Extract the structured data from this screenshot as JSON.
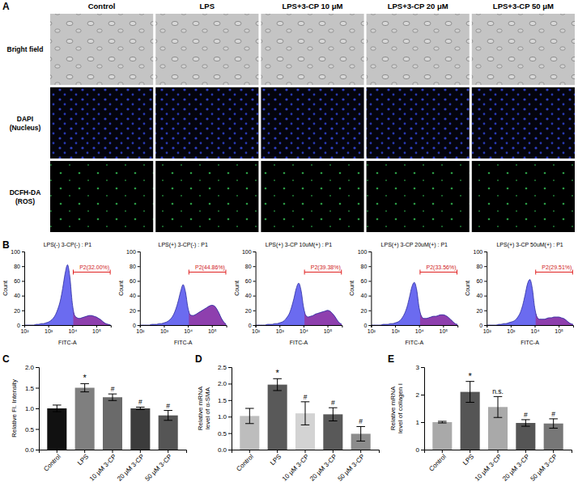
{
  "panel_a": {
    "label": "A",
    "columns": [
      "Control",
      "LPS",
      "LPS+3-CP 10 μM",
      "LPS+3-CP 20 μM",
      "LPS+3-CP 50 μM"
    ],
    "rows": [
      [
        "Bright field"
      ],
      [
        "DAPI",
        "(Nucleus)"
      ],
      [
        "DCFH-DA",
        "(ROS)"
      ]
    ]
  },
  "panel_b": {
    "label": "B"
  },
  "chart_data": [
    {
      "type": "area",
      "title": "LPS(-) 3-CP(-) : P1",
      "x_label": "FITC-A",
      "y_label": "Count",
      "log": "x",
      "x": [
        100,
        126,
        158,
        200,
        251,
        316,
        398,
        501,
        631,
        794,
        1000,
        1259,
        1585,
        1995,
        2512,
        3162,
        3981,
        5012,
        6310,
        7943,
        10000,
        12589,
        15849,
        19953,
        25119,
        31623,
        39811,
        50119,
        63096,
        79433,
        100000,
        125893,
        158489,
        199526,
        251189,
        316228,
        398107
      ],
      "values": [
        0,
        0,
        0,
        0,
        0,
        1,
        1,
        2,
        2,
        3,
        4,
        6,
        9,
        14,
        22,
        33,
        50,
        70,
        82,
        65,
        30,
        13,
        10,
        9,
        10,
        11,
        12,
        13,
        13,
        12,
        11,
        9,
        7,
        4,
        2,
        1,
        0
      ],
      "color": "#6b6bf0",
      "xlim": [
        100,
        400000
      ],
      "xticks": [
        {
          "value": 100,
          "label": "10²"
        },
        {
          "value": 1000,
          "label": "10³"
        },
        {
          "value": 10000,
          "label": "10⁴"
        },
        {
          "value": 100000,
          "label": "10⁵"
        }
      ],
      "ylim": [
        0,
        100
      ],
      "yticks": [
        0,
        20,
        40,
        60,
        80,
        100
      ],
      "gate": {
        "range": [
          11000,
          380000
        ],
        "label": "P2(32.00%)",
        "color": "#8e3fae"
      }
    },
    {
      "type": "area",
      "title": "LPS(+) 3-CP(-) : P1",
      "x_label": "FITC-A",
      "y_label": "Count",
      "log": "x",
      "x": [
        100,
        126,
        158,
        200,
        251,
        316,
        398,
        501,
        631,
        794,
        1000,
        1259,
        1585,
        1995,
        2512,
        3162,
        3981,
        5012,
        6310,
        7943,
        10000,
        12589,
        15849,
        19953,
        25119,
        31623,
        39811,
        50119,
        63096,
        79433,
        100000,
        125893,
        158489,
        199526,
        251189,
        316228,
        398107
      ],
      "values": [
        0,
        0,
        0,
        0,
        0,
        1,
        1,
        1,
        2,
        2,
        3,
        4,
        6,
        9,
        14,
        22,
        33,
        46,
        55,
        45,
        24,
        14,
        13,
        14,
        16,
        18,
        20,
        22,
        24,
        26,
        27,
        26,
        22,
        16,
        9,
        4,
        1
      ],
      "color": "#6b6bf0",
      "xlim": [
        100,
        400000
      ],
      "xticks": [
        {
          "value": 100,
          "label": "10²"
        },
        {
          "value": 1000,
          "label": "10³"
        },
        {
          "value": 10000,
          "label": "10⁴"
        },
        {
          "value": 100000,
          "label": "10⁵"
        }
      ],
      "ylim": [
        0,
        100
      ],
      "yticks": [
        0,
        20,
        40,
        60,
        80,
        100
      ],
      "gate": {
        "range": [
          11000,
          380000
        ],
        "label": "P2(44.86%)",
        "color": "#8e3fae"
      }
    },
    {
      "type": "area",
      "title": "LPS(+) 3-CP 10uM(+) : P1",
      "x_label": "FITC-A",
      "y_label": "Count",
      "log": "x",
      "x": [
        100,
        126,
        158,
        200,
        251,
        316,
        398,
        501,
        631,
        794,
        1000,
        1259,
        1585,
        1995,
        2512,
        3162,
        3981,
        5012,
        6310,
        7943,
        10000,
        12589,
        15849,
        19953,
        25119,
        31623,
        39811,
        50119,
        63096,
        79433,
        100000,
        125893,
        158489,
        199526,
        251189,
        316228,
        398107
      ],
      "values": [
        0,
        0,
        0,
        0,
        0,
        1,
        1,
        1,
        2,
        2,
        3,
        4,
        6,
        10,
        15,
        24,
        36,
        50,
        57,
        47,
        25,
        13,
        11,
        12,
        13,
        15,
        16,
        17,
        18,
        19,
        20,
        19,
        16,
        12,
        7,
        3,
        1
      ],
      "color": "#6b6bf0",
      "xlim": [
        100,
        400000
      ],
      "xticks": [
        {
          "value": 100,
          "label": "10²"
        },
        {
          "value": 1000,
          "label": "10³"
        },
        {
          "value": 10000,
          "label": "10⁴"
        },
        {
          "value": 100000,
          "label": "10⁵"
        }
      ],
      "ylim": [
        0,
        100
      ],
      "yticks": [
        0,
        20,
        40,
        60,
        80,
        100
      ],
      "gate": {
        "range": [
          11000,
          380000
        ],
        "label": "P2(39.38%)",
        "color": "#8e3fae"
      }
    },
    {
      "type": "area",
      "title": "LPS(+) 3-CP 20uM(+) : P1",
      "x_label": "FITC-A",
      "y_label": "Count",
      "log": "x",
      "x": [
        100,
        126,
        158,
        200,
        251,
        316,
        398,
        501,
        631,
        794,
        1000,
        1259,
        1585,
        1995,
        2512,
        3162,
        3981,
        5012,
        6310,
        7943,
        10000,
        12589,
        15849,
        19953,
        25119,
        31623,
        39811,
        50119,
        63096,
        79433,
        100000,
        125893,
        158489,
        199526,
        251189,
        316228,
        398107
      ],
      "values": [
        0,
        0,
        0,
        0,
        0,
        1,
        1,
        1,
        2,
        2,
        3,
        4,
        6,
        10,
        16,
        25,
        38,
        52,
        58,
        48,
        24,
        12,
        9,
        9,
        10,
        11,
        12,
        12,
        13,
        14,
        14,
        13,
        11,
        8,
        5,
        2,
        1
      ],
      "color": "#6b6bf0",
      "xlim": [
        100,
        400000
      ],
      "xticks": [
        {
          "value": 100,
          "label": "10²"
        },
        {
          "value": 1000,
          "label": "10³"
        },
        {
          "value": 10000,
          "label": "10⁴"
        },
        {
          "value": 100000,
          "label": "10⁵"
        }
      ],
      "ylim": [
        0,
        100
      ],
      "yticks": [
        0,
        20,
        40,
        60,
        80,
        100
      ],
      "gate": {
        "range": [
          11000,
          380000
        ],
        "label": "P2(33.56%)",
        "color": "#8e3fae"
      }
    },
    {
      "type": "area",
      "title": "LPS(+) 3-CP 50uM(+) : P1",
      "x_label": "FITC-A",
      "y_label": "Count",
      "log": "x",
      "x": [
        100,
        126,
        158,
        200,
        251,
        316,
        398,
        501,
        631,
        794,
        1000,
        1259,
        1585,
        1995,
        2512,
        3162,
        3981,
        5012,
        6310,
        7943,
        10000,
        12589,
        15849,
        19953,
        25119,
        31623,
        39811,
        50119,
        63096,
        79433,
        100000,
        125893,
        158489,
        199526,
        251189,
        316228,
        398107
      ],
      "values": [
        0,
        0,
        0,
        0,
        0,
        1,
        1,
        2,
        2,
        3,
        4,
        5,
        7,
        11,
        17,
        27,
        41,
        56,
        62,
        50,
        24,
        11,
        8,
        8,
        8,
        9,
        10,
        10,
        11,
        11,
        11,
        10,
        9,
        7,
        4,
        2,
        1
      ],
      "color": "#6b6bf0",
      "xlim": [
        100,
        400000
      ],
      "xticks": [
        {
          "value": 100,
          "label": "10²"
        },
        {
          "value": 1000,
          "label": "10³"
        },
        {
          "value": 10000,
          "label": "10⁴"
        },
        {
          "value": 100000,
          "label": "10⁵"
        }
      ],
      "ylim": [
        0,
        100
      ],
      "yticks": [
        0,
        20,
        40,
        60,
        80,
        100
      ],
      "gate": {
        "range": [
          11000,
          380000
        ],
        "label": "P2(29.51%)",
        "color": "#8e3fae"
      }
    },
    {
      "type": "bar",
      "label": "C",
      "y_label": "Relative Fl. Intensity",
      "categories": [
        "Control",
        "LPS",
        "10 μM 3-CP",
        "20 μM 3-CP",
        "50 μM 3-CP"
      ],
      "values": [
        1.0,
        1.5,
        1.27,
        1.0,
        0.83
      ],
      "errors": [
        0.08,
        0.1,
        0.08,
        0.03,
        0.12
      ],
      "colors": [
        "#111111",
        "#7f7f7f",
        "#6a6a6a",
        "#3c3c3c",
        "#555555"
      ],
      "ylim": [
        0,
        2
      ],
      "yticks": [
        {
          "value": 0,
          "label": "0.0"
        },
        {
          "value": 0.5,
          "label": "0.5"
        },
        {
          "value": 1,
          "label": "1.0"
        },
        {
          "value": 1.5,
          "label": "1.5"
        },
        {
          "value": 2,
          "label": "2.0"
        }
      ],
      "annotations": [
        {
          "category": "LPS",
          "text": "*"
        },
        {
          "category": "10 μM 3-CP",
          "text": "#"
        },
        {
          "category": "20 μM 3-CP",
          "text": "#"
        },
        {
          "category": "50 μM 3-CP",
          "text": "#"
        }
      ]
    },
    {
      "type": "bar",
      "label": "D",
      "y_label": "Relative mRNA level of α-SMA",
      "categories": [
        "Control",
        "LPS",
        "10 μM 3-CP",
        "20 μM 3-CP",
        "50 μM 3-CP"
      ],
      "values": [
        1.02,
        1.97,
        1.1,
        1.07,
        0.48
      ],
      "errors": [
        0.23,
        0.18,
        0.35,
        0.2,
        0.22
      ],
      "colors": [
        "#bdbdbd",
        "#595959",
        "#d3d3d3",
        "#595959",
        "#8c8c8c"
      ],
      "ylim": [
        0,
        2.5
      ],
      "yticks": [
        {
          "value": 0,
          "label": "0.0"
        },
        {
          "value": 0.5,
          "label": "0.5"
        },
        {
          "value": 1,
          "label": "1.0"
        },
        {
          "value": 1.5,
          "label": "1.5"
        },
        {
          "value": 2,
          "label": "2.0"
        },
        {
          "value": 2.5,
          "label": "2.5"
        }
      ],
      "annotations": [
        {
          "category": "LPS",
          "text": "*"
        },
        {
          "category": "10 μM 3-CP",
          "text": "#"
        },
        {
          "category": "20 μM 3-CP",
          "text": "#"
        },
        {
          "category": "50 μM 3-CP",
          "text": "#"
        }
      ]
    },
    {
      "type": "bar",
      "label": "E",
      "y_label": "Relative mRNA level of collagen I",
      "categories": [
        "Control",
        "LPS",
        "10 μM 3-CP",
        "20 μM 3-CP",
        "50 μM 3-CP"
      ],
      "values": [
        1.0,
        2.1,
        1.55,
        0.97,
        0.95
      ],
      "errors": [
        0.03,
        0.38,
        0.38,
        0.12,
        0.17
      ],
      "colors": [
        "#a9a9a9",
        "#555555",
        "#a9a9a9",
        "#555555",
        "#777777"
      ],
      "ylim": [
        0,
        3
      ],
      "yticks": [
        0,
        1,
        2,
        3
      ],
      "annotations": [
        {
          "category": "LPS",
          "text": "*"
        },
        {
          "category": "10 μM 3-CP",
          "text": "n.s."
        },
        {
          "category": "20 μM 3-CP",
          "text": "#"
        },
        {
          "category": "50 μM 3-CP",
          "text": "#"
        }
      ]
    }
  ]
}
